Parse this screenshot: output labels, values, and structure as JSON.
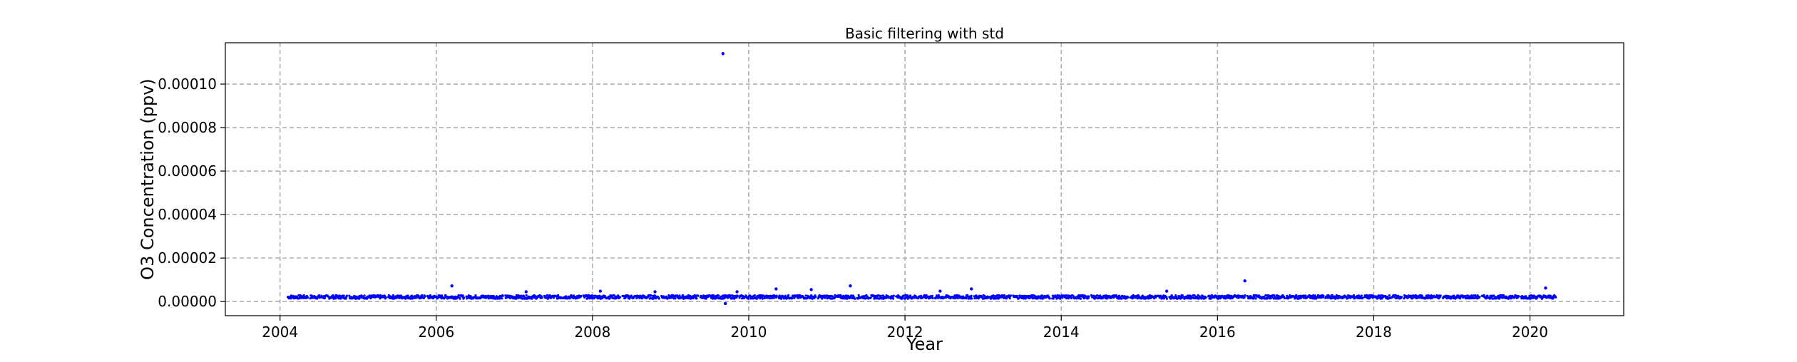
{
  "chart_data": {
    "type": "scatter",
    "title": "Basic filtering with std",
    "xlabel": "Year",
    "ylabel": "O3 Concentration (ppv)",
    "xlim": [
      2003.3,
      2021.2
    ],
    "ylim": [
      -6.5e-06,
      0.000119
    ],
    "xticks": [
      2004,
      2006,
      2008,
      2010,
      2012,
      2014,
      2016,
      2018,
      2020
    ],
    "xtick_labels": [
      "2004",
      "2006",
      "2008",
      "2010",
      "2012",
      "2014",
      "2016",
      "2018",
      "2020"
    ],
    "yticks": [
      0.0,
      2e-05,
      4e-05,
      6e-05,
      8e-05,
      0.0001
    ],
    "ytick_labels": [
      "0.00000",
      "0.00002",
      "0.00004",
      "0.00006",
      "0.00008",
      "0.00010"
    ],
    "grid": true,
    "marker_color": "#0000ff",
    "series": [
      {
        "name": "O3",
        "x_range": [
          2004.1,
          2020.33
        ],
        "baseline": 2.1e-06,
        "baseline_spread": 1.6e-06,
        "outliers": [
          {
            "x": 2009.67,
            "y": 0.000114
          },
          {
            "x": 2009.7,
            "y": -9e-07
          },
          {
            "x": 2006.2,
            "y": 7.2e-06
          },
          {
            "x": 2007.15,
            "y": 4.5e-06
          },
          {
            "x": 2008.1,
            "y": 4.8e-06
          },
          {
            "x": 2008.8,
            "y": 4.5e-06
          },
          {
            "x": 2009.85,
            "y": 4.5e-06
          },
          {
            "x": 2010.35,
            "y": 5.8e-06
          },
          {
            "x": 2010.8,
            "y": 5.5e-06
          },
          {
            "x": 2011.3,
            "y": 7.2e-06
          },
          {
            "x": 2012.45,
            "y": 4.8e-06
          },
          {
            "x": 2012.85,
            "y": 5.8e-06
          },
          {
            "x": 2015.35,
            "y": 4.8e-06
          },
          {
            "x": 2016.35,
            "y": 9.5e-06
          },
          {
            "x": 2020.2,
            "y": 6.2e-06
          }
        ]
      }
    ]
  }
}
